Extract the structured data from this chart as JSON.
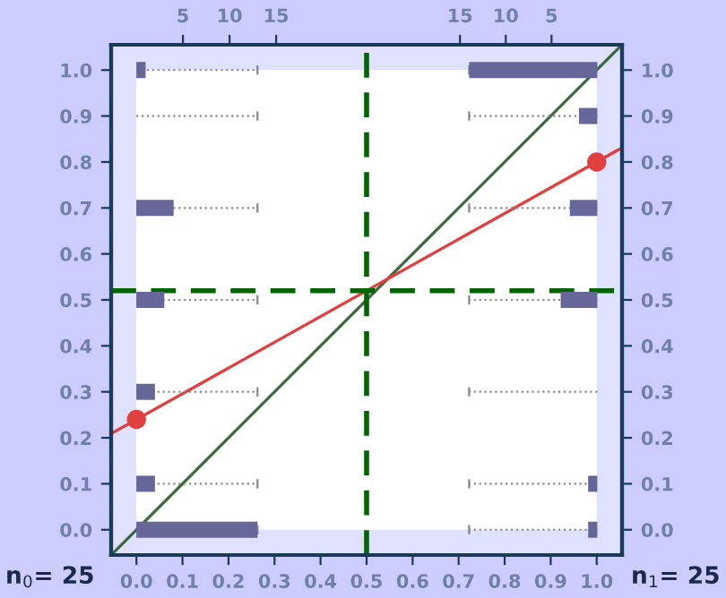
{
  "chart_data": [
    {
      "type": "line",
      "xlim": [
        -0.055,
        1.055
      ],
      "ylim": [
        -0.055,
        1.055
      ],
      "xticks": [
        {
          "value": 0,
          "label": "0.0"
        },
        0.1,
        0.2,
        0.3,
        0.4,
        0.5,
        0.6,
        0.7,
        0.8,
        0.9,
        {
          "value": 1,
          "label": "1.0"
        }
      ],
      "yticks": [
        {
          "value": 0,
          "label": "0.0"
        },
        0.1,
        0.2,
        0.3,
        0.4,
        0.5,
        0.6,
        0.7,
        0.8,
        0.9,
        {
          "value": 1,
          "label": "1.0"
        }
      ],
      "y2lim": [
        -0.055,
        1.055
      ],
      "y2ticks": [
        {
          "value": 0,
          "label": "0.0"
        },
        0.1,
        0.2,
        0.3,
        0.4,
        0.5,
        0.6,
        0.7,
        0.8,
        0.9,
        {
          "value": 1,
          "label": "1.0"
        }
      ],
      "grid": false,
      "series": [
        {
          "type": "line",
          "color": "#3d6b3d",
          "x": [
            -0.055,
            1.055
          ],
          "values": [
            -0.055,
            1.055
          ],
          "marker": "none"
        },
        {
          "type": "line",
          "color": "#e04040",
          "x": [
            -0.055,
            1.055
          ],
          "values": [
            0.209,
            0.831
          ],
          "marker": "none"
        },
        {
          "type": "scatter",
          "color": "#e04040",
          "x": [
            0,
            1
          ],
          "values": [
            0.24,
            0.8
          ],
          "marker": "circle"
        }
      ],
      "ref_lines": [
        {
          "axis": "x",
          "value": 0.5,
          "color": "#006400",
          "line_style": "dashed"
        },
        {
          "axis": "y",
          "value": 0.52,
          "color": "#006400",
          "line_style": "dashed"
        }
      ],
      "annotations": [
        "n$_{0}$= 25",
        "n$_{1}$= 25"
      ]
    },
    {
      "type": "bar",
      "orientation": "horizontal",
      "x": [
        0.0,
        0.1,
        0.3,
        0.5,
        0.7,
        0.9,
        1.0
      ],
      "values": [
        13,
        2,
        2,
        3,
        4,
        0,
        1
      ],
      "color": "#666699",
      "xlim": [
        -2.7,
        52.1
      ],
      "xticks": [
        5,
        10,
        15
      ],
      "ylim": [
        -0.055,
        1.055
      ],
      "tick_labels": "x"
    },
    {
      "type": "bar",
      "orientation": "horizontal",
      "x": [
        0.0,
        0.1,
        0.3,
        0.5,
        0.7,
        0.9,
        1.0
      ],
      "values": [
        1,
        1,
        0,
        4,
        3,
        2,
        14
      ],
      "color": "#666699",
      "xlim": [
        53.1,
        -2.7
      ],
      "xticks": [
        5,
        10,
        15
      ],
      "ylim": [
        -0.055,
        1.055
      ],
      "tick_labels": "x"
    }
  ]
}
